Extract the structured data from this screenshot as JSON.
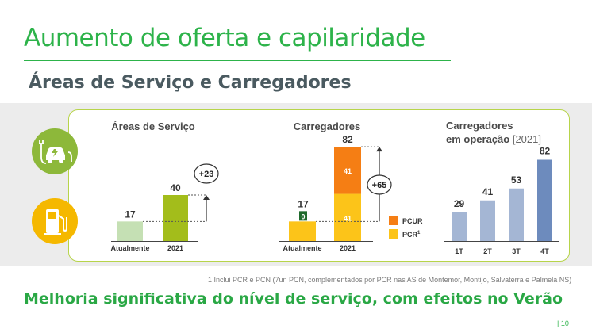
{
  "header": {
    "title": "Aumento de oferta e capilaridade",
    "subtitle": "Áreas de Serviço e Carregadores"
  },
  "icons": [
    "ev-charging-car-icon",
    "fuel-pump-icon"
  ],
  "colors": {
    "green_title": "#2db34a",
    "areas_current": "#c5e0b4",
    "areas_2021": "#a3bd1b",
    "pcr": "#fcc419",
    "pcur": "#f57e14",
    "ops_light": "#a4b6d4",
    "ops_dark": "#6d8bbd"
  },
  "chart_data": [
    {
      "type": "bar",
      "title": "Áreas de Serviço",
      "categories": [
        "Atualmente",
        "2021"
      ],
      "values": [
        17,
        40
      ],
      "annotation": "+23"
    },
    {
      "type": "bar",
      "title": "Carregadores",
      "categories": [
        "Atualmente",
        "2021"
      ],
      "series": [
        {
          "name": "PCR",
          "sup": "1",
          "values": [
            17,
            41
          ]
        },
        {
          "name": "PCUR",
          "values": [
            0,
            41
          ]
        }
      ],
      "totals": [
        17,
        82
      ],
      "annotation": "+65",
      "legend": "right"
    },
    {
      "type": "bar",
      "title_line1": "Carregadores",
      "title_line2": "em operação",
      "title_suffix": "[2021]",
      "categories": [
        "1T",
        "2T",
        "3T",
        "4T"
      ],
      "values": [
        29,
        41,
        53,
        82
      ]
    }
  ],
  "footnote": "1 Inclui PCR e PCN (7un PCN, complementados por PCR nas AS de Montemor, Montijo, Salvaterra e Palmela NS)",
  "bottom_line": "Melhoria significativa do nível de serviço, com efeitos no Verão",
  "page_number": "10"
}
